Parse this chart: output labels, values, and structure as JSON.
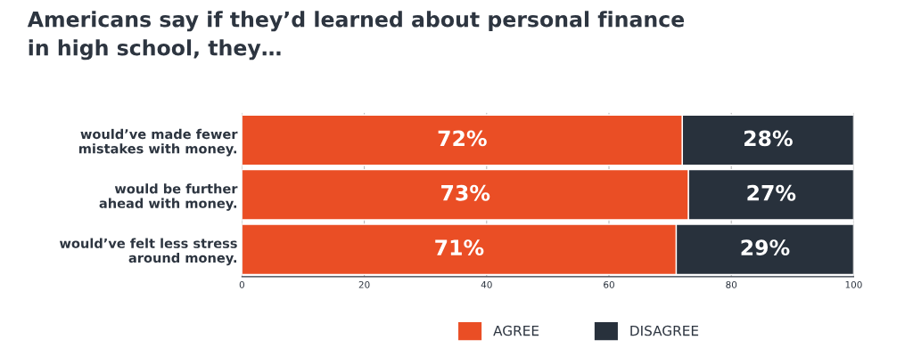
{
  "chart_data": {
    "type": "bar",
    "orientation": "horizontal",
    "stacked": true,
    "title": "Americans say if they’d learned about personal finance\nin high school, they…",
    "categories": [
      "would’ve made fewer\nmistakes with money.",
      "would be further\nahead with money.",
      "would’ve felt less stress\naround money."
    ],
    "series": [
      {
        "name": "AGREE",
        "color": "#ea4e25",
        "values": [
          72,
          73,
          71
        ],
        "value_labels": [
          "72%",
          "73%",
          "71%"
        ]
      },
      {
        "name": "DISAGREE",
        "color": "#28313c",
        "values": [
          28,
          27,
          29
        ],
        "value_labels": [
          "28%",
          "27%",
          "29%"
        ]
      }
    ],
    "xlim": [
      0,
      100
    ],
    "xticks": [
      0,
      20,
      40,
      60,
      80,
      100
    ],
    "grid": "x",
    "legend": "bottom"
  }
}
